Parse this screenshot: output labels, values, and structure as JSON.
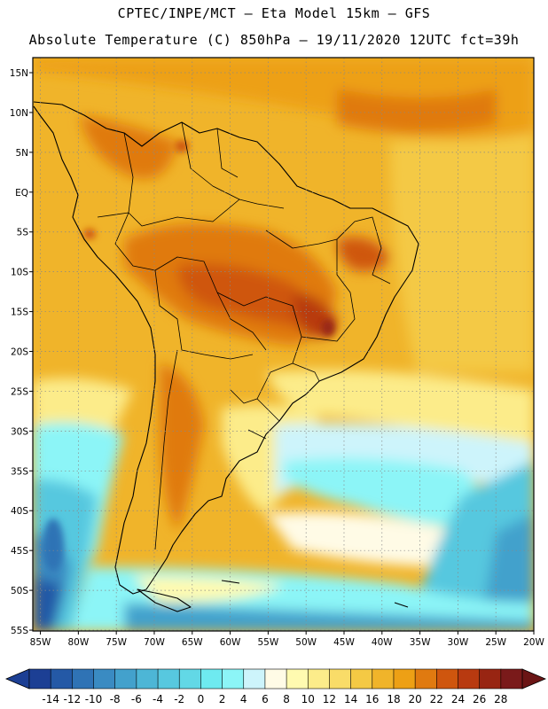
{
  "header": {
    "line1": "CPTEC/INPE/MCT –  Eta Model 15km – GFS",
    "line2": "Absolute Temperature (C) 850hPa – 19/11/2020 12UTC fct=39h"
  },
  "map": {
    "lat_labels": [
      "15N",
      "10N",
      "5N",
      "EQ",
      "5S",
      "10S",
      "15S",
      "20S",
      "25S",
      "30S",
      "35S",
      "40S",
      "45S",
      "50S",
      "55S"
    ],
    "lon_labels": [
      "85W",
      "80W",
      "75W",
      "70W",
      "65W",
      "60W",
      "55W",
      "50W",
      "45W",
      "40W",
      "35W",
      "30W",
      "25W",
      "20W"
    ],
    "lat_range": [
      15,
      -57
    ],
    "lon_range": [
      -86,
      -20
    ],
    "grid": "dotted"
  },
  "colorbar": {
    "labels": [
      "-14",
      "-12",
      "-10",
      "-8",
      "-6",
      "-4",
      "-2",
      "0",
      "2",
      "4",
      "6",
      "8",
      "10",
      "12",
      "14",
      "16",
      "18",
      "20",
      "22",
      "24",
      "26",
      "28"
    ],
    "colors": [
      "#1c3f94",
      "#2459a6",
      "#2f73b5",
      "#3a8bc2",
      "#43a1cc",
      "#4db6d6",
      "#57c8df",
      "#62d8e6",
      "#6eeaf0",
      "#8cf5f7",
      "#cdf4fb",
      "#fffbe6",
      "#fffab0",
      "#fcec8a",
      "#f9dc68",
      "#f4c944",
      "#f0b42a",
      "#eda015",
      "#e07a10",
      "#cf560e",
      "#b83a10",
      "#982512",
      "#7a1a1a"
    ]
  }
}
